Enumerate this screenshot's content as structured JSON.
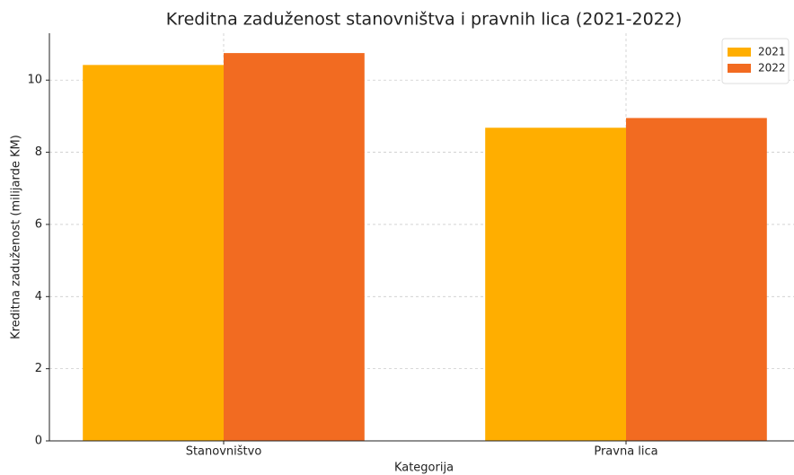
{
  "chart_data": {
    "type": "bar",
    "title": "Kreditna zaduženost stanovništva i pravnih lica (2021-2022)",
    "x_label": "Kategorija",
    "y_label": "Kreditna zaduženost (milijarde KM)",
    "categories": [
      "Stanovništvo",
      "Pravna lica"
    ],
    "series": [
      {
        "name": "2021",
        "color": "#ffae00",
        "values": [
          10.42,
          8.68
        ]
      },
      {
        "name": "2022",
        "color": "#f26b21",
        "values": [
          10.75,
          8.95
        ]
      }
    ],
    "ylim": [
      0,
      11.3
    ],
    "yticks": [
      0,
      2,
      4,
      6,
      8,
      10
    ],
    "grid": true,
    "legend": "upper right"
  }
}
